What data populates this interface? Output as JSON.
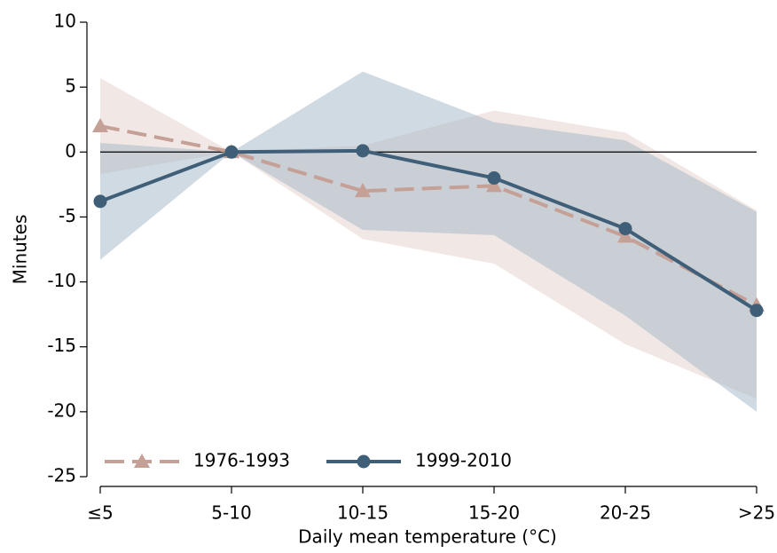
{
  "chart_data": {
    "type": "line",
    "x_label": "Daily mean temperature (°C)",
    "y_label": "Minutes",
    "categories": [
      "≤5",
      "5-10",
      "10-15",
      "15-20",
      "20-25",
      ">25"
    ],
    "series": [
      {
        "name": "1976-1993",
        "color": "#c4a096",
        "band_color": "#e6d3cf",
        "marker": "triangle",
        "dash": true,
        "values": [
          2.0,
          0,
          -3.0,
          -2.6,
          -6.5,
          -11.8
        ],
        "upper": [
          5.7,
          0,
          0.5,
          3.2,
          1.5,
          -4.5
        ],
        "lower": [
          -1.7,
          0,
          -6.7,
          -8.6,
          -14.8,
          -19.0
        ]
      },
      {
        "name": "1999-2010",
        "color": "#3f5e78",
        "band_color": "#a9bccb",
        "marker": "circle",
        "dash": false,
        "values": [
          -3.8,
          0,
          0.1,
          -2.0,
          -5.9,
          -12.2
        ],
        "upper": [
          0.7,
          0,
          6.2,
          2.3,
          0.9,
          -4.6
        ],
        "lower": [
          -8.3,
          0,
          -6.0,
          -6.4,
          -12.6,
          -20.0
        ]
      }
    ],
    "ylim": [
      -25,
      10
    ],
    "yticks": [
      -25,
      -20,
      -15,
      -10,
      -5,
      0,
      5,
      10
    ],
    "reference_line": 0,
    "legend": "lower left",
    "grid": false
  }
}
